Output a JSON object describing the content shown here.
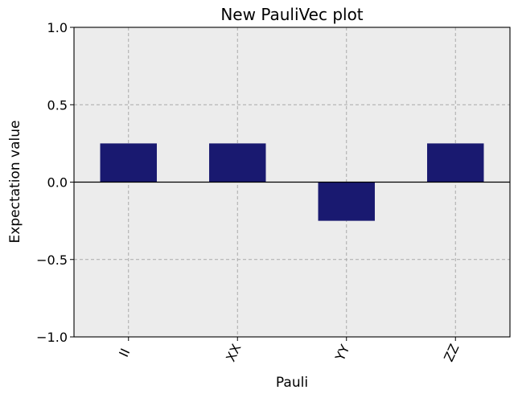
{
  "chart_data": {
    "type": "bar",
    "title": "New PauliVec plot",
    "xlabel": "Pauli",
    "ylabel": "Expectation value",
    "categories": [
      "II",
      "XX",
      "YY",
      "ZZ"
    ],
    "values": [
      0.25,
      0.25,
      -0.25,
      0.25
    ],
    "ylim": [
      -1.0,
      1.0
    ],
    "yticks": [
      1.0,
      0.5,
      0.0,
      -0.5,
      -1.0
    ],
    "ytick_labels": [
      "1.0",
      "0.5",
      "0.0",
      "−0.5",
      "−1.0"
    ],
    "grid": true,
    "legend": "none",
    "colors": {
      "bar": "#191970",
      "plot_background": "#ececec",
      "grid": "#aaaaaa",
      "axis": "#000000"
    }
  }
}
